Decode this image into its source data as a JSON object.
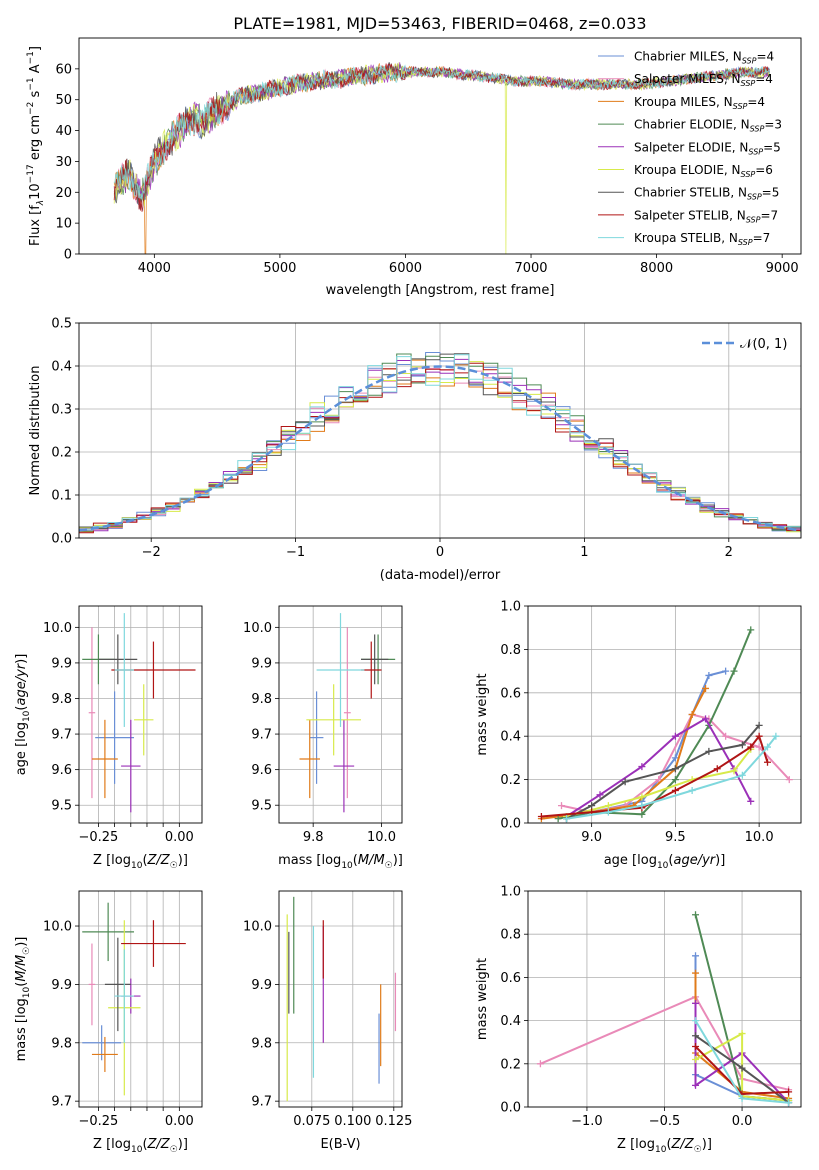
{
  "figure_title": "PLATE=1981, MJD=53463, FIBERID=0468, z=0.033",
  "colors": {
    "Chabrier MILES": "#6a8fd6",
    "Salpeter MILES": "#e98ab8",
    "Kroupa MILES": "#e07b1a",
    "Chabrier ELODIE": "#4f8a55",
    "Salpeter ELODIE": "#9b30b8",
    "Kroupa ELODIE": "#d7ea4a",
    "Chabrier STELIB": "#555555",
    "Salpeter STELIB": "#b01515",
    "Kroupa STELIB": "#7fd8dd",
    "normal": "#5b8fd9"
  },
  "chart_data": [
    {
      "id": "spectrum",
      "type": "line",
      "title": "PLATE=1981, MJD=53463, FIBERID=0468, z=0.033",
      "xlabel": "wavelength [Angstrom, rest frame]",
      "ylabel": "Flux [f_λ 10^-17 erg cm^-2 s^-1 A^-1]",
      "xlim": [
        3400,
        9150
      ],
      "ylim": [
        0,
        70
      ],
      "xticks": [
        4000,
        5000,
        6000,
        7000,
        8000,
        9000
      ],
      "yticks": [
        0,
        10,
        20,
        30,
        40,
        50,
        60
      ],
      "x": [
        3680,
        3800,
        3900,
        4000,
        4100,
        4200,
        4300,
        4400,
        4500,
        4700,
        4900,
        5100,
        5300,
        5500,
        5700,
        5900,
        6100,
        6300,
        6500,
        6700,
        6900,
        7100,
        7300,
        7500,
        7700,
        7900,
        8100,
        8300,
        8500,
        8700,
        8900
      ],
      "y": [
        21,
        26,
        18,
        30,
        36,
        40,
        44,
        43,
        47,
        51,
        53,
        55,
        56,
        57,
        58,
        59,
        59,
        59,
        58,
        57,
        56,
        56,
        55,
        55,
        55,
        55,
        56,
        57,
        58,
        59,
        59
      ],
      "legend_position": "upper right",
      "series": [
        {
          "label": "Chabrier MILES, N",
          "sub": "SSP",
          "tail": "=4",
          "color_key": "Chabrier MILES"
        },
        {
          "label": "Salpeter MILES, N",
          "sub": "SSP",
          "tail": "=4",
          "color_key": "Salpeter MILES"
        },
        {
          "label": "Kroupa MILES, N",
          "sub": "SSP",
          "tail": "=4",
          "color_key": "Kroupa MILES",
          "drop_at": 3930
        },
        {
          "label": "Chabrier ELODIE, N",
          "sub": "SSP",
          "tail": "=3",
          "color_key": "Chabrier ELODIE"
        },
        {
          "label": "Salpeter ELODIE, N",
          "sub": "SSP",
          "tail": "=5",
          "color_key": "Salpeter ELODIE"
        },
        {
          "label": "Kroupa ELODIE, N",
          "sub": "SSP",
          "tail": "=6",
          "color_key": "Kroupa ELODIE",
          "drop_at": 6800
        },
        {
          "label": "Chabrier STELIB, N",
          "sub": "SSP",
          "tail": "=5",
          "color_key": "Chabrier STELIB"
        },
        {
          "label": "Salpeter STELIB, N",
          "sub": "SSP",
          "tail": "=7",
          "color_key": "Salpeter STELIB"
        },
        {
          "label": "Kroupa STELIB, N",
          "sub": "SSP",
          "tail": "=7",
          "color_key": "Kroupa STELIB"
        }
      ]
    },
    {
      "id": "residuals",
      "type": "histogram",
      "xlabel": "(data-model)/error",
      "ylabel": "Normed distribution",
      "xlim": [
        -2.5,
        2.5
      ],
      "ylim": [
        0,
        0.5
      ],
      "xticks": [
        -2,
        -1,
        0,
        1,
        2
      ],
      "xtick_labels": [
        "−2",
        "−1",
        "0",
        "1",
        "2"
      ],
      "yticks": [
        0,
        0.1,
        0.2,
        0.3,
        0.4,
        0.5
      ],
      "ytick_labels": [
        "0.0",
        "0.1",
        "0.2",
        "0.3",
        "0.4",
        "0.5"
      ],
      "grid": true,
      "bin_width": 0.1,
      "reference": {
        "label": "𝒩(0, 1)",
        "mean": 0,
        "sigma": 1
      }
    },
    {
      "id": "age_vs_Z",
      "type": "errorbar",
      "xlabel": "Z [log10(Z/Z☉)]",
      "ylabel": "age [log10(age/yr)]",
      "xlim": [
        -0.31,
        0.07
      ],
      "ylim": [
        9.45,
        10.06
      ],
      "xticks": [
        -0.25,
        -0.2,
        -0.15,
        -0.1,
        -0.05,
        0.0
      ],
      "xtick_labels": [
        "−0.25",
        "",
        "",
        "",
        "",
        "0.00"
      ],
      "yticks": [
        9.5,
        9.6,
        9.7,
        9.8,
        9.9,
        10.0
      ],
      "ytick_labels": [
        "9.5",
        "9.6",
        "9.7",
        "9.8",
        "9.9",
        "10.0"
      ],
      "points": [
        {
          "key": "Chabrier MILES",
          "x": -0.2,
          "xerr": 0.06,
          "y": 9.69,
          "yerr": 0.13
        },
        {
          "key": "Salpeter MILES",
          "x": -0.27,
          "xerr": 0.01,
          "y": 9.76,
          "yerr": 0.24
        },
        {
          "key": "Kroupa MILES",
          "x": -0.23,
          "xerr": 0.04,
          "y": 9.63,
          "yerr": 0.11
        },
        {
          "key": "Chabrier ELODIE",
          "x": -0.25,
          "xerr": 0.05,
          "y": 9.91,
          "yerr": 0.07
        },
        {
          "key": "Salpeter ELODIE",
          "x": -0.15,
          "xerr": 0.03,
          "y": 9.61,
          "yerr": 0.13
        },
        {
          "key": "Kroupa ELODIE",
          "x": -0.11,
          "xerr": 0.03,
          "y": 9.74,
          "yerr": 0.1
        },
        {
          "key": "Chabrier STELIB",
          "x": -0.19,
          "xerr": 0.06,
          "y": 9.91,
          "yerr": 0.07
        },
        {
          "key": "Salpeter STELIB",
          "x": -0.08,
          "xerr": 0.13,
          "y": 9.88,
          "yerr": 0.08
        },
        {
          "key": "Kroupa STELIB",
          "x": -0.17,
          "xerr": 0.03,
          "y": 9.88,
          "yerr": 0.16
        }
      ]
    },
    {
      "id": "age_vs_mass",
      "type": "errorbar",
      "xlabel": "mass [log10(M/M☉)]",
      "xlim": [
        9.7,
        10.06
      ],
      "ylim": [
        9.45,
        10.06
      ],
      "xticks": [
        9.8,
        10.0
      ],
      "xtick_labels": [
        "9.8",
        "10.0"
      ],
      "yticks": [
        9.5,
        9.6,
        9.7,
        9.8,
        9.9,
        10.0
      ],
      "ytick_labels": [
        "9.5",
        "9.6",
        "9.7",
        "9.8",
        "9.9",
        "10.0"
      ],
      "points": [
        {
          "key": "Chabrier MILES",
          "x": 9.81,
          "xerr": 0.02,
          "y": 9.69,
          "yerr": 0.13
        },
        {
          "key": "Salpeter MILES",
          "x": 9.9,
          "xerr": 0.01,
          "y": 9.76,
          "yerr": 0.24
        },
        {
          "key": "Kroupa MILES",
          "x": 9.79,
          "xerr": 0.03,
          "y": 9.63,
          "yerr": 0.11
        },
        {
          "key": "Chabrier ELODIE",
          "x": 9.99,
          "xerr": 0.05,
          "y": 9.91,
          "yerr": 0.07
        },
        {
          "key": "Salpeter ELODIE",
          "x": 9.89,
          "xerr": 0.03,
          "y": 9.61,
          "yerr": 0.13
        },
        {
          "key": "Kroupa ELODIE",
          "x": 9.86,
          "xerr": 0.08,
          "y": 9.74,
          "yerr": 0.1
        },
        {
          "key": "Chabrier STELIB",
          "x": 9.98,
          "xerr": 0.04,
          "y": 9.91,
          "yerr": 0.07
        },
        {
          "key": "Salpeter STELIB",
          "x": 9.97,
          "xerr": 0.03,
          "y": 9.88,
          "yerr": 0.08
        },
        {
          "key": "Kroupa STELIB",
          "x": 9.88,
          "xerr": 0.07,
          "y": 9.88,
          "yerr": 0.16
        }
      ]
    },
    {
      "id": "weight_vs_age",
      "type": "line",
      "xlabel": "age [log10(age/yr)]",
      "ylabel": "mass weight",
      "xlim": [
        8.62,
        10.25
      ],
      "ylim": [
        0,
        1
      ],
      "xticks": [
        9.0,
        9.5,
        10.0
      ],
      "xtick_labels": [
        "9.0",
        "9.5",
        "10.0"
      ],
      "yticks": [
        0,
        0.2,
        0.4,
        0.6,
        0.8,
        1.0
      ],
      "ytick_labels": [
        "0.0",
        "0.2",
        "0.4",
        "0.6",
        "0.8",
        "1.0"
      ],
      "series": [
        {
          "key": "Chabrier MILES",
          "x": [
            8.85,
            9.0,
            9.3,
            9.5,
            9.6,
            9.7,
            9.8
          ],
          "y": [
            0.02,
            0.05,
            0.1,
            0.3,
            0.5,
            0.68,
            0.7
          ]
        },
        {
          "key": "Salpeter MILES",
          "x": [
            8.82,
            9.0,
            9.2,
            9.4,
            9.6,
            9.7,
            9.8,
            10.0,
            10.18
          ],
          "y": [
            0.08,
            0.05,
            0.08,
            0.2,
            0.5,
            0.48,
            0.4,
            0.35,
            0.2
          ]
        },
        {
          "key": "Kroupa MILES",
          "x": [
            8.7,
            9.0,
            9.25,
            9.5,
            9.6,
            9.68
          ],
          "y": [
            0.02,
            0.05,
            0.08,
            0.25,
            0.5,
            0.62
          ]
        },
        {
          "key": "Chabrier ELODIE",
          "x": [
            8.8,
            9.0,
            9.3,
            9.5,
            9.7,
            9.85,
            9.95
          ],
          "y": [
            0.02,
            0.05,
            0.04,
            0.2,
            0.45,
            0.7,
            0.89
          ]
        },
        {
          "key": "Salpeter ELODIE",
          "x": [
            8.85,
            9.05,
            9.3,
            9.5,
            9.68,
            9.85,
            9.95
          ],
          "y": [
            0.03,
            0.13,
            0.26,
            0.4,
            0.48,
            0.25,
            0.1
          ]
        },
        {
          "key": "Kroupa ELODIE",
          "x": [
            8.85,
            9.1,
            9.3,
            9.6,
            9.85,
            9.95
          ],
          "y": [
            0.03,
            0.08,
            0.12,
            0.2,
            0.24,
            0.34
          ]
        },
        {
          "key": "Chabrier STELIB",
          "x": [
            8.85,
            9.0,
            9.2,
            9.5,
            9.7,
            9.9,
            10.0
          ],
          "y": [
            0.02,
            0.08,
            0.19,
            0.25,
            0.33,
            0.36,
            0.45
          ]
        },
        {
          "key": "Salpeter STELIB",
          "x": [
            8.7,
            9.0,
            9.3,
            9.5,
            9.75,
            9.95,
            10.0,
            10.05
          ],
          "y": [
            0.03,
            0.05,
            0.07,
            0.15,
            0.25,
            0.35,
            0.4,
            0.28
          ]
        },
        {
          "key": "Kroupa STELIB",
          "x": [
            8.85,
            9.1,
            9.3,
            9.6,
            9.9,
            10.05,
            10.1
          ],
          "y": [
            0.02,
            0.05,
            0.08,
            0.15,
            0.22,
            0.35,
            0.4
          ]
        }
      ]
    },
    {
      "id": "mass_vs_Z",
      "type": "errorbar",
      "xlabel": "Z [log10(Z/Z☉)]",
      "ylabel": "mass [log10(M/M☉)]",
      "xlim": [
        -0.31,
        0.07
      ],
      "ylim": [
        9.69,
        10.06
      ],
      "xticks": [
        -0.25,
        -0.2,
        -0.15,
        -0.1,
        -0.05,
        0.0
      ],
      "xtick_labels": [
        "−0.25",
        "",
        "",
        "",
        "",
        "0.00"
      ],
      "yticks": [
        9.7,
        9.8,
        9.9,
        10.0
      ],
      "ytick_labels": [
        "9.7",
        "9.8",
        "9.9",
        "10.0"
      ],
      "points": [
        {
          "key": "Chabrier MILES",
          "x": -0.24,
          "xerr": 0.06,
          "y": 9.8,
          "yerr": 0.03
        },
        {
          "key": "Salpeter MILES",
          "x": -0.27,
          "xerr": 0.01,
          "y": 9.9,
          "yerr": 0.07
        },
        {
          "key": "Kroupa MILES",
          "x": -0.23,
          "xerr": 0.04,
          "y": 9.78,
          "yerr": 0.03
        },
        {
          "key": "Chabrier ELODIE",
          "x": -0.22,
          "xerr": 0.08,
          "y": 9.99,
          "yerr": 0.05
        },
        {
          "key": "Salpeter ELODIE",
          "x": -0.15,
          "xerr": 0.03,
          "y": 9.88,
          "yerr": 0.03
        },
        {
          "key": "Kroupa ELODIE",
          "x": -0.17,
          "xerr": 0.05,
          "y": 9.86,
          "yerr": 0.15
        },
        {
          "key": "Chabrier STELIB",
          "x": -0.19,
          "xerr": 0.04,
          "y": 9.9,
          "yerr": 0.08
        },
        {
          "key": "Salpeter STELIB",
          "x": -0.08,
          "xerr": 0.1,
          "y": 9.97,
          "yerr": 0.04
        },
        {
          "key": "Kroupa STELIB",
          "x": -0.17,
          "xerr": 0.03,
          "y": 9.88,
          "yerr": 0.08
        }
      ]
    },
    {
      "id": "mass_vs_ebv",
      "type": "errorbar",
      "xlabel": "E(B-V)",
      "xlim": [
        0.055,
        0.13
      ],
      "ylim": [
        9.69,
        10.06
      ],
      "xticks": [
        0.075,
        0.1,
        0.125
      ],
      "xtick_labels": [
        "0.075",
        "0.100",
        "0.125"
      ],
      "yticks": [
        9.7,
        9.8,
        9.9,
        10.0
      ],
      "ytick_labels": [
        "9.7",
        "9.8",
        "9.9",
        "10.0"
      ],
      "points": [
        {
          "key": "Chabrier MILES",
          "x": 0.116,
          "y": 9.79,
          "yerr": 0.06
        },
        {
          "key": "Salpeter MILES",
          "x": 0.126,
          "y": 9.87,
          "yerr": 0.05
        },
        {
          "key": "Kroupa MILES",
          "x": 0.117,
          "y": 9.83,
          "yerr": 0.07
        },
        {
          "key": "Chabrier ELODIE",
          "x": 0.064,
          "y": 9.95,
          "yerr": 0.1
        },
        {
          "key": "Salpeter ELODIE",
          "x": 0.082,
          "y": 9.9,
          "yerr": 0.1
        },
        {
          "key": "Kroupa ELODIE",
          "x": 0.06,
          "y": 9.86,
          "yerr": 0.16
        },
        {
          "key": "Chabrier STELIB",
          "x": 0.061,
          "y": 9.92,
          "yerr": 0.07
        },
        {
          "key": "Salpeter STELIB",
          "x": 0.082,
          "y": 9.96,
          "yerr": 0.05
        },
        {
          "key": "Kroupa STELIB",
          "x": 0.076,
          "y": 9.87,
          "yerr": 0.13
        }
      ]
    },
    {
      "id": "weight_vs_Z",
      "type": "line",
      "xlabel": "Z [log10(Z/Z☉)]",
      "ylabel": "mass weight",
      "xlim": [
        -1.38,
        0.38
      ],
      "ylim": [
        0,
        1
      ],
      "xticks": [
        -1.0,
        -0.5,
        0.0
      ],
      "xtick_labels": [
        "−1.0",
        "−0.5",
        "0.0"
      ],
      "yticks": [
        0,
        0.2,
        0.4,
        0.6,
        0.8,
        1.0
      ],
      "ytick_labels": [
        "0.0",
        "0.2",
        "0.4",
        "0.6",
        "0.8",
        "1.0"
      ],
      "series": [
        {
          "key": "Chabrier MILES",
          "x": [
            -0.3,
            -0.3,
            0.0,
            0.3
          ],
          "y": [
            0.7,
            0.15,
            0.05,
            0.03
          ]
        },
        {
          "key": "Salpeter MILES",
          "x": [
            -1.3,
            -0.3,
            0.0,
            0.3
          ],
          "y": [
            0.2,
            0.51,
            0.13,
            0.08
          ]
        },
        {
          "key": "Kroupa MILES",
          "x": [
            -0.3,
            -0.3,
            0.0,
            0.3
          ],
          "y": [
            0.62,
            0.25,
            0.07,
            0.04
          ]
        },
        {
          "key": "Chabrier ELODIE",
          "x": [
            -0.3,
            0.0,
            0.3
          ],
          "y": [
            0.89,
            0.05,
            0.03
          ]
        },
        {
          "key": "Salpeter ELODIE",
          "x": [
            -0.3,
            -0.3,
            0.0,
            0.3
          ],
          "y": [
            0.48,
            0.1,
            0.25,
            0.02
          ]
        },
        {
          "key": "Kroupa ELODIE",
          "x": [
            -0.3,
            0.0,
            0.0,
            0.3
          ],
          "y": [
            0.22,
            0.34,
            0.05,
            0.03
          ]
        },
        {
          "key": "Chabrier STELIB",
          "x": [
            -0.3,
            0.0,
            0.3
          ],
          "y": [
            0.33,
            0.18,
            0.02
          ]
        },
        {
          "key": "Salpeter STELIB",
          "x": [
            -0.3,
            0.0,
            0.3
          ],
          "y": [
            0.28,
            0.06,
            0.07
          ]
        },
        {
          "key": "Kroupa STELIB",
          "x": [
            -0.3,
            0.0,
            0.3
          ],
          "y": [
            0.4,
            0.04,
            0.02
          ]
        }
      ]
    }
  ]
}
